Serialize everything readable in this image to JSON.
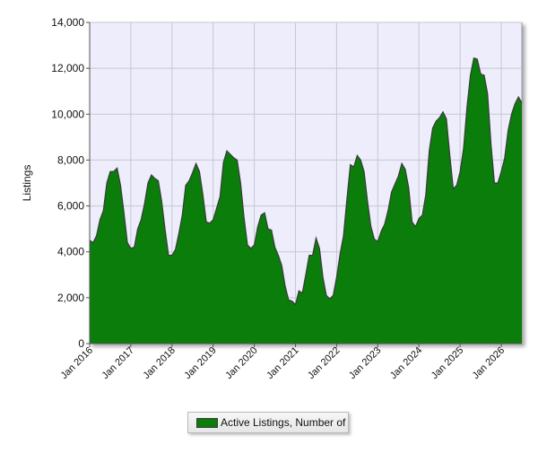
{
  "chart_data": {
    "type": "area",
    "title": "",
    "xlabel": "",
    "ylabel": "Listings",
    "ylim": [
      0,
      14000
    ],
    "yticks": [
      0,
      2000,
      4000,
      6000,
      8000,
      10000,
      12000,
      14000
    ],
    "ytick_labels": [
      "0",
      "2,000",
      "4,000",
      "6,000",
      "8,000",
      "10,000",
      "12,000",
      "14,000"
    ],
    "xlim": [
      "2016-01",
      "2026-07"
    ],
    "xticks": [
      "2016-01",
      "2017-01",
      "2018-01",
      "2019-01",
      "2020-01",
      "2021-01",
      "2022-01",
      "2023-01",
      "2024-01",
      "2025-01",
      "2026-01"
    ],
    "xtick_labels": [
      "Jan 2016",
      "Jan 2017",
      "Jan 2018",
      "Jan 2019",
      "Jan 2020",
      "Jan 2021",
      "Jan 2022",
      "Jan 2023",
      "Jan 2024",
      "Jan 2025",
      "Jan 2026"
    ],
    "grid": true,
    "legend_position": "bottom",
    "colors": {
      "fill": "#0a7d0a",
      "line": "#3a3a3a",
      "plot_bg": "#ededfb",
      "grid": "#c8c8d4"
    },
    "series": [
      {
        "name": "Active Listings, Number of",
        "x": [
          "2016-01",
          "2016-02",
          "2016-03",
          "2016-04",
          "2016-05",
          "2016-06",
          "2016-07",
          "2016-08",
          "2016-09",
          "2016-10",
          "2016-11",
          "2016-12",
          "2017-01",
          "2017-02",
          "2017-03",
          "2017-04",
          "2017-05",
          "2017-06",
          "2017-07",
          "2017-08",
          "2017-09",
          "2017-10",
          "2017-11",
          "2017-12",
          "2018-01",
          "2018-02",
          "2018-03",
          "2018-04",
          "2018-05",
          "2018-06",
          "2018-07",
          "2018-08",
          "2018-09",
          "2018-10",
          "2018-11",
          "2018-12",
          "2019-01",
          "2019-02",
          "2019-03",
          "2019-04",
          "2019-05",
          "2019-06",
          "2019-07",
          "2019-08",
          "2019-09",
          "2019-10",
          "2019-11",
          "2019-12",
          "2020-01",
          "2020-02",
          "2020-03",
          "2020-04",
          "2020-05",
          "2020-06",
          "2020-07",
          "2020-08",
          "2020-09",
          "2020-10",
          "2020-11",
          "2020-12",
          "2021-01",
          "2021-02",
          "2021-03",
          "2021-04",
          "2021-05",
          "2021-06",
          "2021-07",
          "2021-08",
          "2021-09",
          "2021-10",
          "2021-11",
          "2021-12",
          "2022-01",
          "2022-02",
          "2022-03",
          "2022-04",
          "2022-05",
          "2022-06",
          "2022-07",
          "2022-08",
          "2022-09",
          "2022-10",
          "2022-11",
          "2022-12",
          "2023-01",
          "2023-02",
          "2023-03",
          "2023-04",
          "2023-05",
          "2023-06",
          "2023-07",
          "2023-08",
          "2023-09",
          "2023-10",
          "2023-11",
          "2023-12",
          "2024-01",
          "2024-02",
          "2024-03",
          "2024-04",
          "2024-05",
          "2024-06",
          "2024-07",
          "2024-08",
          "2024-09",
          "2024-10",
          "2024-11",
          "2024-12",
          "2025-01",
          "2025-02",
          "2025-03",
          "2025-04",
          "2025-05",
          "2025-06",
          "2025-07",
          "2025-08",
          "2025-09",
          "2025-10",
          "2025-11",
          "2025-12",
          "2026-01",
          "2026-02",
          "2026-03",
          "2026-04",
          "2026-05",
          "2026-06",
          "2026-07"
        ],
        "values": [
          4500,
          4400,
          4700,
          5400,
          5800,
          7000,
          7500,
          7500,
          7650,
          6900,
          5700,
          4400,
          4150,
          4200,
          5000,
          5400,
          6100,
          7000,
          7350,
          7200,
          7100,
          6200,
          4950,
          3850,
          3850,
          4100,
          4800,
          5600,
          6900,
          7100,
          7450,
          7850,
          7500,
          6500,
          5300,
          5250,
          5400,
          5900,
          6400,
          7900,
          8400,
          8250,
          8100,
          8000,
          7000,
          5500,
          4300,
          4150,
          4300,
          5100,
          5600,
          5700,
          5000,
          4950,
          4200,
          3850,
          3400,
          2500,
          1900,
          1850,
          1700,
          2300,
          2200,
          3000,
          3850,
          3850,
          4600,
          4150,
          2900,
          2100,
          1950,
          2100,
          2900,
          3900,
          4700,
          6300,
          7800,
          7700,
          8200,
          8000,
          7500,
          6200,
          5100,
          4550,
          4450,
          4900,
          5200,
          5800,
          6600,
          6950,
          7300,
          7850,
          7600,
          6800,
          5300,
          5100,
          5450,
          5600,
          6500,
          8400,
          9400,
          9700,
          9850,
          10100,
          9800,
          8200,
          6750,
          6900,
          7500,
          8500,
          10300,
          11700,
          12450,
          12400,
          11750,
          11700,
          10900,
          8700,
          7000,
          7000,
          7500,
          8100,
          9300,
          10000,
          10450,
          10750,
          10500
        ]
      }
    ]
  }
}
